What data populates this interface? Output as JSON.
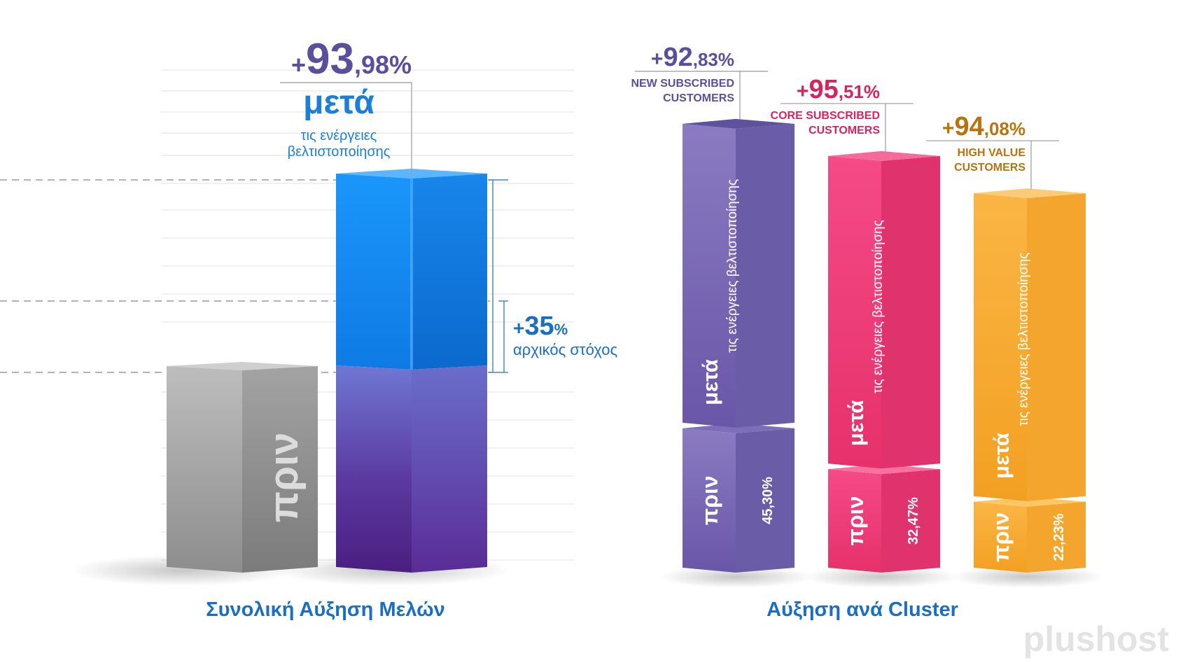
{
  "colors": {
    "before_gray": "#b0b0b0",
    "total_after_blue": "#1893f5",
    "total_before_purple": "#5b3aa0",
    "new_purple": "#7f70b8",
    "core_pink": "#f0467f",
    "high_orange": "#f9ac3c",
    "title_blue": "#1b6fc2",
    "new_label": "#5b4f9c",
    "core_label": "#d6245f",
    "high_label": "#b8730f"
  },
  "chart_data": [
    {
      "type": "bar",
      "title": "Συνολική Αύξηση Μελών",
      "categories": [
        "πριν",
        "μετά"
      ],
      "values": [
        100,
        193.98
      ],
      "before_label": "πριν",
      "after": {
        "plus": "+",
        "value_int": "93",
        "value_dec": ",98%",
        "value": 93.98,
        "label": "μετά",
        "sub1": "τις ενέργειες",
        "sub2": "βελτιστοποίησης"
      },
      "target": {
        "plus": "+",
        "value_int": "35",
        "value_pct": "%",
        "value": 35,
        "label": "αρχικός στόχος"
      }
    },
    {
      "type": "bar",
      "title": "Αύξηση ανά Cluster",
      "series": [
        {
          "name": "NEW SUBSCRIBED CUSTOMERS",
          "name_line1": "NEW SUBSCRIBED",
          "name_line2": "CUSTOMERS",
          "before": 45.3,
          "before_label": "45,30%",
          "increase": 92.83,
          "plus": "+",
          "inc_int": "92",
          "inc_dec": ",83%",
          "after_text": "μετά",
          "after_sub": "τις ενέργειες βελτιστοποίησης",
          "before_text": "πριν"
        },
        {
          "name": "CORE SUBSCRIBED CUSTOMERS",
          "name_line1": "CORE SUBSCRIBED",
          "name_line2": "CUSTOMERS",
          "before": 32.47,
          "before_label": "32,47%",
          "increase": 95.51,
          "plus": "+",
          "inc_int": "95",
          "inc_dec": ",51%",
          "after_text": "μετά",
          "after_sub": "τις ενέργειες βελτιστοποίησης",
          "before_text": "πριν"
        },
        {
          "name": "HIGH VALUE CUSTOMERS",
          "name_line1": "HIGH VALUE",
          "name_line2": "CUSTOMERS",
          "before": 22.23,
          "before_label": "22,23%",
          "increase": 94.08,
          "plus": "+",
          "inc_int": "94",
          "inc_dec": ",08%",
          "after_text": "μετά",
          "after_sub": "τις ενέργειες βελτιστοποίησης",
          "before_text": "πριν"
        }
      ]
    }
  ],
  "brand": "plushost"
}
